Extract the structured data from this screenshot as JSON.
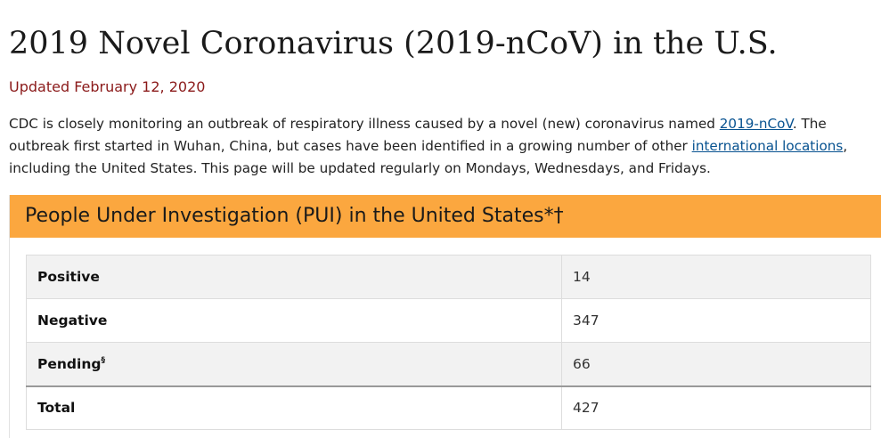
{
  "header": {
    "title": "2019 Novel Coronavirus (2019-nCoV) in the U.S.",
    "updated": "Updated February 12, 2020"
  },
  "intro": {
    "part1": "CDC is closely monitoring an outbreak of respiratory illness caused by a novel (new) coronavirus named ",
    "link_ncov": "2019-nCoV",
    "part2": ". The",
    "part3": "outbreak first started in Wuhan, China, but cases have been identified in a growing number of other ",
    "link_international": "international locations",
    "part4": ",",
    "part5": "including the United States. This page will be updated regularly on Mondays, Wednesdays, and Fridays."
  },
  "pui": {
    "heading": "People Under Investigation (PUI) in the United States*†",
    "rows": [
      {
        "label": "Positive",
        "sup": "",
        "value": "14"
      },
      {
        "label": "Negative",
        "sup": "",
        "value": "347"
      },
      {
        "label": "Pending",
        "sup": "§",
        "value": "66"
      },
      {
        "label": "Total",
        "sup": "",
        "value": "427"
      }
    ]
  },
  "colors": {
    "accent_orange": "#fba73f",
    "updated_text": "#8b1a1a",
    "link": "#075290"
  }
}
